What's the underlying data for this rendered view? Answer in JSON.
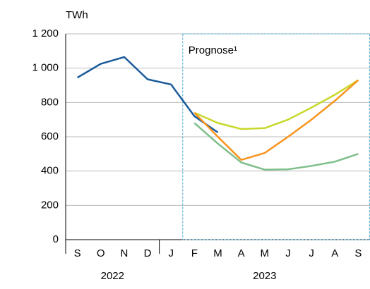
{
  "chart_data": {
    "type": "line",
    "y_label": "TWh",
    "annotation": "Prognose¹",
    "categories": [
      "S",
      "O",
      "N",
      "D",
      "J",
      "F",
      "M",
      "A",
      "M",
      "J",
      "J",
      "A",
      "S"
    ],
    "years": [
      "2022",
      "2023"
    ],
    "series": [
      {
        "color": "#1a5a9a",
        "values": [
          945,
          1025,
          1065,
          935,
          905,
          720,
          625,
          null,
          null,
          null,
          null,
          null,
          null
        ]
      },
      {
        "color": "#c8d82a",
        "values": [
          null,
          null,
          null,
          null,
          null,
          740,
          680,
          645,
          650,
          700,
          770,
          845,
          930
        ]
      },
      {
        "color": "#f7941d",
        "values": [
          null,
          null,
          null,
          null,
          null,
          740,
          600,
          465,
          505,
          600,
          700,
          810,
          930
        ]
      },
      {
        "color": "#7fbf8a",
        "values": [
          null,
          null,
          null,
          null,
          null,
          680,
          560,
          450,
          408,
          410,
          430,
          455,
          500
        ]
      }
    ],
    "ylim": [
      0,
      1200
    ],
    "yticks": [
      0,
      200,
      400,
      600,
      800,
      {
        "value": 1000,
        "label": "1 000"
      },
      {
        "value": 1200,
        "label": "1 200"
      }
    ],
    "grid": true
  }
}
